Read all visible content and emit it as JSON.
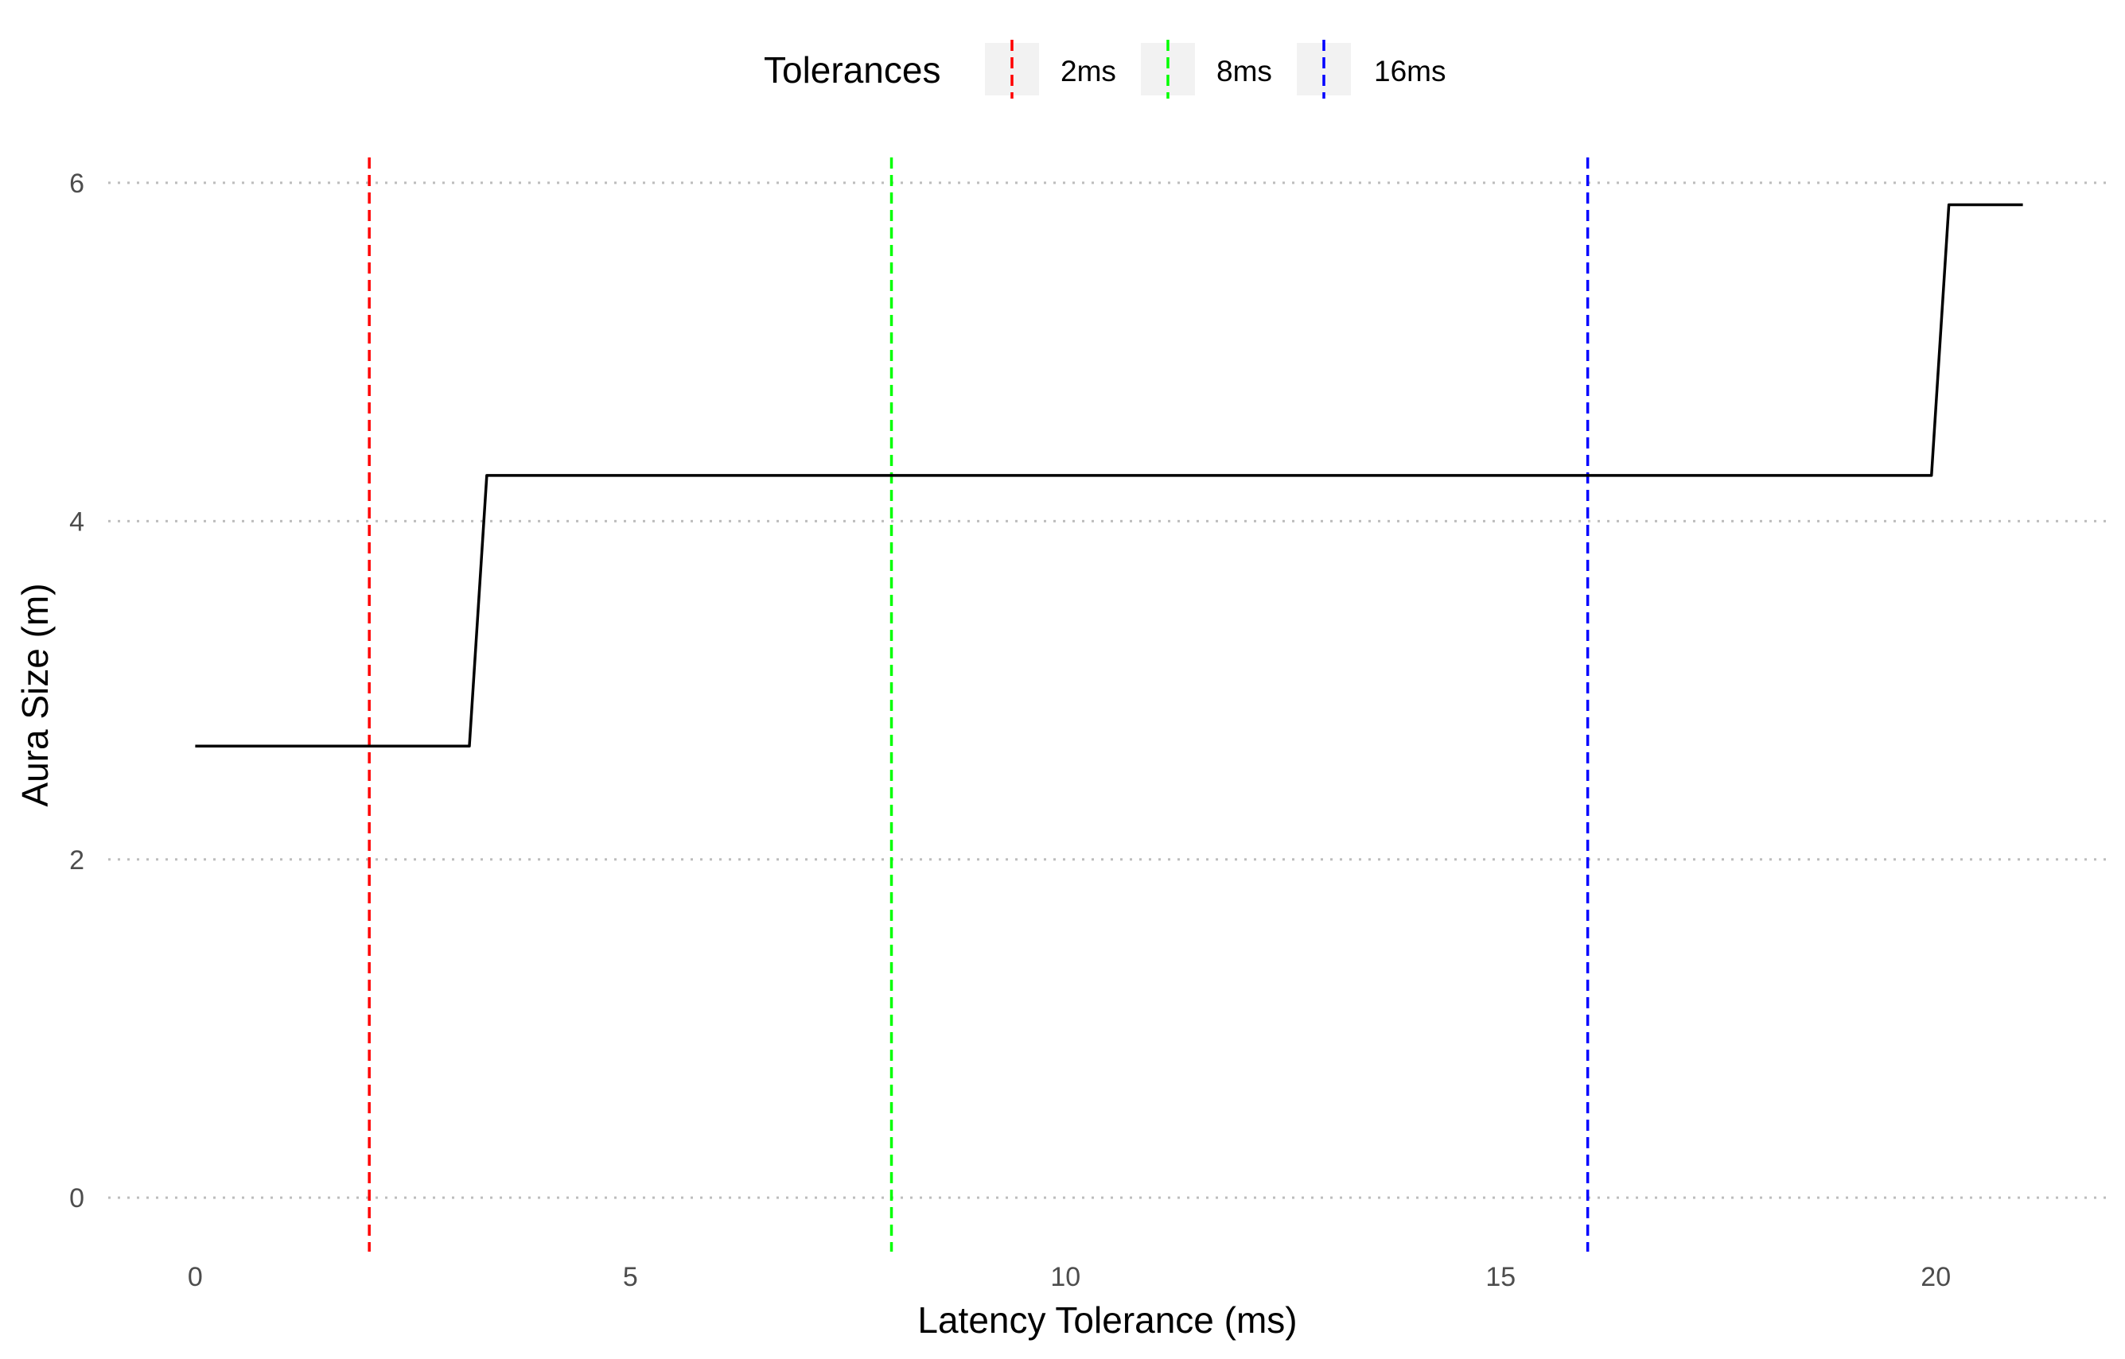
{
  "chart_data": {
    "type": "line",
    "title": "",
    "xlabel": "Latency Tolerance (ms)",
    "ylabel": "Aura Size (m)",
    "xlim": [
      -1,
      22
    ],
    "ylim": [
      -0.3,
      6.15
    ],
    "x_ticks": [
      0,
      5,
      10,
      15,
      20
    ],
    "y_ticks": [
      0,
      2,
      4,
      6
    ],
    "grid": "horizontal dotted major lines",
    "series": [
      {
        "color": "#000000",
        "points": [
          [
            0,
            2.67
          ],
          [
            3.15,
            2.67
          ],
          [
            3.35,
            4.27
          ],
          [
            19.95,
            4.27
          ],
          [
            20.15,
            5.87
          ],
          [
            21,
            5.87
          ]
        ]
      }
    ],
    "reference_lines": [
      {
        "name": "2ms",
        "x": 2,
        "color": "#ff0000"
      },
      {
        "name": "8ms",
        "x": 8,
        "color": "#00ff00"
      },
      {
        "name": "16ms",
        "x": 16,
        "color": "#0000ff"
      }
    ],
    "legend": {
      "title": "Tolerances",
      "placement": "top",
      "entries": [
        "2ms",
        "8ms",
        "16ms"
      ]
    }
  }
}
